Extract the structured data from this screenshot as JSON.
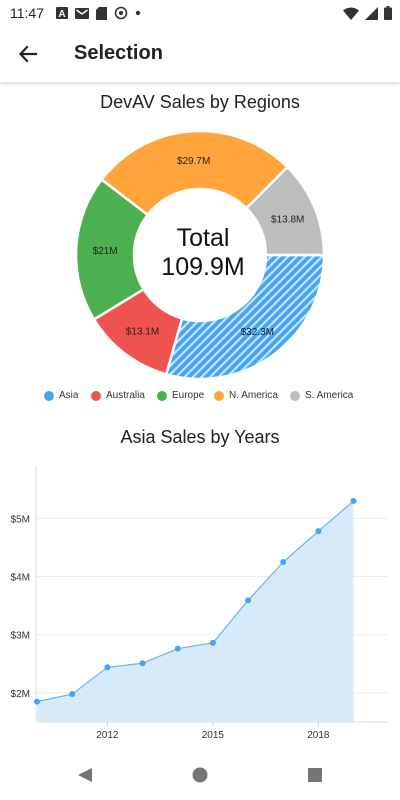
{
  "status_bar": {
    "time": "11:47",
    "left_icons": [
      "font-icon",
      "gmail-icon",
      "sd-card-icon",
      "at-sign-icon",
      "dot-icon"
    ],
    "right_icons": [
      "wifi-icon",
      "signal-icon",
      "battery-icon"
    ]
  },
  "app_bar": {
    "title": "Selection",
    "back_icon": "arrow-back-icon"
  },
  "colors": {
    "asia": "#42A5F5",
    "australia": "#EF5350",
    "europe": "#4CAF50",
    "n_america": "#FFA53C",
    "s_america": "#BDBDBD",
    "line_fill": "#D6EAFA",
    "line_stroke": "#64B5F6"
  },
  "donut": {
    "title": "DevAV Sales by Regions",
    "center_label_1": "Total",
    "center_label_2": "109.9M"
  },
  "legend": [
    {
      "label": "Asia",
      "color": "#42A5F5"
    },
    {
      "label": "Australia",
      "color": "#EF5350"
    },
    {
      "label": "Europe",
      "color": "#4CAF50"
    },
    {
      "label": "N. America",
      "color": "#FFA53C"
    },
    {
      "label": "S. America",
      "color": "#BDBDBD"
    }
  ],
  "line": {
    "title": "Asia Sales by Years"
  },
  "chart_data": [
    {
      "type": "pie",
      "title": "DevAV Sales by Regions",
      "categories": [
        "Asia",
        "Australia",
        "Europe",
        "N. America",
        "S. America"
      ],
      "values": [
        32.3,
        13.1,
        21,
        29.7,
        13.8
      ],
      "labels": [
        "$32.3M",
        "$13.1M",
        "$21M",
        "$29.7M",
        "$13.8M"
      ],
      "selected": "Asia",
      "legend_position": "bottom"
    },
    {
      "type": "area",
      "title": "Asia Sales by Years",
      "x": [
        2010,
        2011,
        2012,
        2013,
        2014,
        2015,
        2016,
        2017,
        2018,
        2019
      ],
      "values": [
        1.85,
        1.98,
        2.44,
        2.51,
        2.76,
        2.86,
        3.59,
        4.25,
        4.78,
        5.3
      ],
      "x_ticks": [
        "2012",
        "2015",
        "2018"
      ],
      "y_ticks": [
        "$2M",
        "$3M",
        "$4M",
        "$5M"
      ],
      "xlim": [
        2009.97,
        2019.98
      ],
      "ylim": [
        1.5,
        5.9
      ],
      "grid": true
    }
  ],
  "nav_bar": {
    "back": "triangle-back-icon",
    "home": "circle-home-icon",
    "recents": "square-recents-icon"
  }
}
